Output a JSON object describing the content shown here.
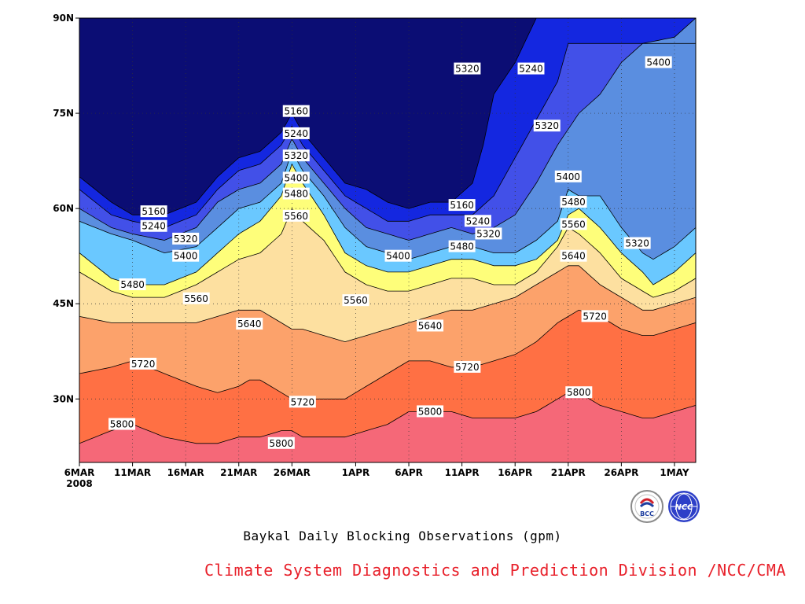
{
  "chart_data": {
    "type": "heatmap",
    "subtype": "filled-contour (time-latitude Hovmoller)",
    "x_tick_labels": [
      "6MAR",
      "11MAR",
      "16MAR",
      "21MAR",
      "26MAR",
      "1APR",
      "6APR",
      "11APR",
      "16APR",
      "21APR",
      "26APR",
      "1MAY"
    ],
    "x_year_label": "2008",
    "x_range_days": [
      0,
      58
    ],
    "x_tick_days": [
      0,
      5,
      10,
      15,
      20,
      26,
      31,
      36,
      41,
      46,
      51,
      56
    ],
    "y_tick_labels": [
      "30N",
      "45N",
      "60N",
      "75N",
      "90N"
    ],
    "y_tick_values": [
      30,
      45,
      60,
      75,
      90
    ],
    "y_range": [
      20,
      90
    ],
    "grid": true,
    "contour_levels": [
      5160,
      5240,
      5320,
      5400,
      5480,
      5560,
      5640,
      5720,
      5800
    ],
    "level_colors": [
      "#0b0d74",
      "#1427e0",
      "#4250e8",
      "#5a8ee0",
      "#6ac8ff",
      "#fefe7a",
      "#fde0a0",
      "#fca26b",
      "#ff7044",
      "#f56878"
    ],
    "contours": [
      {
        "level": 5160,
        "pts": [
          [
            0,
            65
          ],
          [
            3,
            61
          ],
          [
            5,
            59
          ],
          [
            8,
            59
          ],
          [
            11,
            61
          ],
          [
            13,
            65
          ],
          [
            15,
            68
          ],
          [
            17,
            69
          ],
          [
            19,
            72
          ],
          [
            20,
            75
          ],
          [
            21,
            72
          ],
          [
            23,
            68
          ],
          [
            25,
            64
          ],
          [
            27,
            63
          ],
          [
            29,
            61
          ],
          [
            31,
            60
          ],
          [
            33,
            61
          ],
          [
            35,
            61
          ],
          [
            37,
            64
          ],
          [
            38,
            70
          ],
          [
            39,
            78
          ],
          [
            41,
            83
          ],
          [
            43,
            90
          ]
        ]
      },
      {
        "level": 5240,
        "pts": [
          [
            0,
            63
          ],
          [
            3,
            59
          ],
          [
            5,
            58
          ],
          [
            8,
            57
          ],
          [
            11,
            59
          ],
          [
            13,
            63
          ],
          [
            15,
            66
          ],
          [
            17,
            67
          ],
          [
            19,
            70
          ],
          [
            20,
            73
          ],
          [
            21,
            70
          ],
          [
            23,
            66
          ],
          [
            25,
            62
          ],
          [
            27,
            60
          ],
          [
            29,
            58
          ],
          [
            31,
            58
          ],
          [
            33,
            59
          ],
          [
            35,
            59
          ],
          [
            37,
            59
          ],
          [
            39,
            62
          ],
          [
            41,
            68
          ],
          [
            43,
            74
          ],
          [
            45,
            80
          ],
          [
            46,
            86
          ]
        ]
      },
      {
        "level": 5320,
        "pts": [
          [
            0,
            60
          ],
          [
            3,
            57
          ],
          [
            5,
            56
          ],
          [
            8,
            55
          ],
          [
            11,
            57
          ],
          [
            13,
            61
          ],
          [
            15,
            63
          ],
          [
            17,
            64
          ],
          [
            19,
            67
          ],
          [
            20,
            71
          ],
          [
            21,
            68
          ],
          [
            23,
            64
          ],
          [
            25,
            60
          ],
          [
            27,
            57
          ],
          [
            29,
            56
          ],
          [
            31,
            55
          ],
          [
            33,
            56
          ],
          [
            35,
            57
          ],
          [
            37,
            56
          ],
          [
            39,
            57
          ],
          [
            41,
            59
          ],
          [
            43,
            64
          ],
          [
            45,
            70
          ],
          [
            47,
            75
          ],
          [
            49,
            78
          ],
          [
            51,
            83
          ],
          [
            53,
            86
          ],
          [
            56,
            87
          ],
          [
            58,
            90
          ]
        ]
      },
      {
        "level": 5400,
        "pts": [
          [
            0,
            58
          ],
          [
            3,
            56
          ],
          [
            5,
            55
          ],
          [
            8,
            53
          ],
          [
            11,
            54
          ],
          [
            13,
            57
          ],
          [
            15,
            60
          ],
          [
            17,
            61
          ],
          [
            19,
            64
          ],
          [
            20,
            69
          ],
          [
            21,
            66
          ],
          [
            23,
            62
          ],
          [
            25,
            57
          ],
          [
            27,
            54
          ],
          [
            29,
            53
          ],
          [
            31,
            52
          ],
          [
            33,
            53
          ],
          [
            35,
            54
          ],
          [
            37,
            54
          ],
          [
            39,
            53
          ],
          [
            41,
            53
          ],
          [
            43,
            55
          ],
          [
            45,
            58
          ],
          [
            46,
            63
          ],
          [
            47,
            62
          ],
          [
            49,
            62
          ],
          [
            51,
            57
          ],
          [
            53,
            53
          ],
          [
            54,
            52
          ],
          [
            56,
            54
          ],
          [
            58,
            57
          ]
        ]
      },
      {
        "level": 5480,
        "pts": [
          [
            0,
            53
          ],
          [
            3,
            49
          ],
          [
            5,
            48
          ],
          [
            8,
            48
          ],
          [
            11,
            50
          ],
          [
            13,
            53
          ],
          [
            15,
            56
          ],
          [
            17,
            58
          ],
          [
            19,
            62
          ],
          [
            20,
            67
          ],
          [
            21,
            64
          ],
          [
            23,
            59
          ],
          [
            25,
            53
          ],
          [
            27,
            51
          ],
          [
            29,
            50
          ],
          [
            31,
            50
          ],
          [
            33,
            51
          ],
          [
            35,
            52
          ],
          [
            37,
            52
          ],
          [
            39,
            51
          ],
          [
            41,
            51
          ],
          [
            43,
            52
          ],
          [
            45,
            55
          ],
          [
            46,
            59
          ],
          [
            47,
            60
          ],
          [
            49,
            57
          ],
          [
            51,
            53
          ],
          [
            53,
            50
          ],
          [
            54,
            48
          ],
          [
            56,
            50
          ],
          [
            58,
            53
          ]
        ]
      },
      {
        "level": 5560,
        "pts": [
          [
            0,
            50
          ],
          [
            3,
            47
          ],
          [
            5,
            46
          ],
          [
            8,
            46
          ],
          [
            11,
            48
          ],
          [
            13,
            50
          ],
          [
            15,
            52
          ],
          [
            17,
            53
          ],
          [
            19,
            56
          ],
          [
            20,
            60
          ],
          [
            21,
            58
          ],
          [
            23,
            55
          ],
          [
            25,
            50
          ],
          [
            27,
            48
          ],
          [
            29,
            47
          ],
          [
            31,
            47
          ],
          [
            33,
            48
          ],
          [
            35,
            49
          ],
          [
            37,
            49
          ],
          [
            39,
            48
          ],
          [
            41,
            48
          ],
          [
            43,
            50
          ],
          [
            45,
            54
          ],
          [
            46,
            57
          ],
          [
            47,
            56
          ],
          [
            49,
            53
          ],
          [
            51,
            49
          ],
          [
            53,
            47
          ],
          [
            54,
            46
          ],
          [
            56,
            47
          ],
          [
            58,
            49
          ]
        ]
      },
      {
        "level": 5640,
        "pts": [
          [
            0,
            43
          ],
          [
            3,
            42
          ],
          [
            5,
            42
          ],
          [
            8,
            42
          ],
          [
            11,
            42
          ],
          [
            13,
            43
          ],
          [
            15,
            44
          ],
          [
            17,
            44
          ],
          [
            19,
            42
          ],
          [
            20,
            41
          ],
          [
            21,
            41
          ],
          [
            23,
            40
          ],
          [
            25,
            39
          ],
          [
            27,
            40
          ],
          [
            29,
            41
          ],
          [
            31,
            42
          ],
          [
            33,
            43
          ],
          [
            35,
            44
          ],
          [
            37,
            44
          ],
          [
            39,
            45
          ],
          [
            41,
            46
          ],
          [
            43,
            48
          ],
          [
            45,
            50
          ],
          [
            46,
            51
          ],
          [
            47,
            51
          ],
          [
            49,
            48
          ],
          [
            51,
            46
          ],
          [
            53,
            44
          ],
          [
            54,
            44
          ],
          [
            56,
            45
          ],
          [
            58,
            46
          ]
        ]
      },
      {
        "level": 5720,
        "pts": [
          [
            0,
            34
          ],
          [
            3,
            35
          ],
          [
            5,
            36
          ],
          [
            8,
            34
          ],
          [
            11,
            32
          ],
          [
            13,
            31
          ],
          [
            15,
            32
          ],
          [
            16,
            33
          ],
          [
            17,
            33
          ],
          [
            19,
            31
          ],
          [
            20,
            30
          ],
          [
            21,
            30
          ],
          [
            23,
            30
          ],
          [
            25,
            30
          ],
          [
            27,
            32
          ],
          [
            29,
            34
          ],
          [
            31,
            36
          ],
          [
            33,
            36
          ],
          [
            35,
            35
          ],
          [
            37,
            35
          ],
          [
            39,
            36
          ],
          [
            41,
            37
          ],
          [
            43,
            39
          ],
          [
            45,
            42
          ],
          [
            46,
            43
          ],
          [
            47,
            44
          ],
          [
            49,
            43
          ],
          [
            51,
            41
          ],
          [
            53,
            40
          ],
          [
            54,
            40
          ],
          [
            56,
            41
          ],
          [
            58,
            42
          ]
        ]
      },
      {
        "level": 5800,
        "pts": [
          [
            0,
            23
          ],
          [
            3,
            25
          ],
          [
            5,
            26
          ],
          [
            8,
            24
          ],
          [
            11,
            23
          ],
          [
            13,
            23
          ],
          [
            15,
            24
          ],
          [
            17,
            24
          ],
          [
            19,
            25
          ],
          [
            20,
            25
          ],
          [
            21,
            24
          ],
          [
            23,
            24
          ],
          [
            25,
            24
          ],
          [
            27,
            25
          ],
          [
            29,
            26
          ],
          [
            31,
            28
          ],
          [
            33,
            28
          ],
          [
            35,
            28
          ],
          [
            37,
            27
          ],
          [
            39,
            27
          ],
          [
            41,
            27
          ],
          [
            43,
            28
          ],
          [
            45,
            30
          ],
          [
            46,
            31
          ],
          [
            47,
            31
          ],
          [
            49,
            29
          ],
          [
            51,
            28
          ],
          [
            53,
            27
          ],
          [
            54,
            27
          ],
          [
            56,
            28
          ],
          [
            58,
            29
          ]
        ]
      }
    ],
    "contour_labels": [
      {
        "text": "5160",
        "x": 20.4,
        "y": 75.3
      },
      {
        "text": "5240",
        "x": 20.4,
        "y": 71.8
      },
      {
        "text": "5320",
        "x": 20.4,
        "y": 68.3
      },
      {
        "text": "5400",
        "x": 20.4,
        "y": 64.8
      },
      {
        "text": "5480",
        "x": 20.4,
        "y": 62.3
      },
      {
        "text": "5560",
        "x": 20.4,
        "y": 58.8
      },
      {
        "text": "5160",
        "x": 7.0,
        "y": 59.5
      },
      {
        "text": "5240",
        "x": 7.0,
        "y": 57.2
      },
      {
        "text": "5320",
        "x": 10.0,
        "y": 55.2
      },
      {
        "text": "5400",
        "x": 10.0,
        "y": 52.5
      },
      {
        "text": "5480",
        "x": 5.0,
        "y": 48.0
      },
      {
        "text": "5560",
        "x": 11.0,
        "y": 45.8
      },
      {
        "text": "5640",
        "x": 16.0,
        "y": 41.8
      },
      {
        "text": "5560",
        "x": 26.0,
        "y": 45.5
      },
      {
        "text": "5400",
        "x": 30.0,
        "y": 52.5
      },
      {
        "text": "5480",
        "x": 36.0,
        "y": 54.0
      },
      {
        "text": "5160",
        "x": 36.0,
        "y": 60.5
      },
      {
        "text": "5240",
        "x": 37.5,
        "y": 58.0
      },
      {
        "text": "5320",
        "x": 38.5,
        "y": 56.0
      },
      {
        "text": "5320",
        "x": 36.5,
        "y": 82.0
      },
      {
        "text": "5240",
        "x": 42.5,
        "y": 82.0
      },
      {
        "text": "5320",
        "x": 44.0,
        "y": 73.0
      },
      {
        "text": "5400",
        "x": 54.5,
        "y": 83.0
      },
      {
        "text": "5400",
        "x": 46.0,
        "y": 65.0
      },
      {
        "text": "5480",
        "x": 46.5,
        "y": 61.0
      },
      {
        "text": "5560",
        "x": 46.5,
        "y": 57.5
      },
      {
        "text": "5640",
        "x": 46.5,
        "y": 52.5
      },
      {
        "text": "5720",
        "x": 48.5,
        "y": 43.0
      },
      {
        "text": "5320",
        "x": 52.5,
        "y": 54.5
      },
      {
        "text": "5640",
        "x": 33.0,
        "y": 41.5
      },
      {
        "text": "5720",
        "x": 6.0,
        "y": 35.5
      },
      {
        "text": "5720",
        "x": 21.0,
        "y": 29.5
      },
      {
        "text": "5720",
        "x": 36.5,
        "y": 35.0
      },
      {
        "text": "5800",
        "x": 4.0,
        "y": 26.0
      },
      {
        "text": "5800",
        "x": 19.0,
        "y": 23.0
      },
      {
        "text": "5800",
        "x": 33.0,
        "y": 28.0
      },
      {
        "text": "5800",
        "x": 47.0,
        "y": 31.0
      }
    ]
  },
  "caption": "Baykal Daily Blocking Observations (gpm)",
  "credit": "Climate System Diagnostics and Prediction Division /NCC/CMA",
  "logo_left_text": "BCC",
  "logo_right_text": "NCC"
}
